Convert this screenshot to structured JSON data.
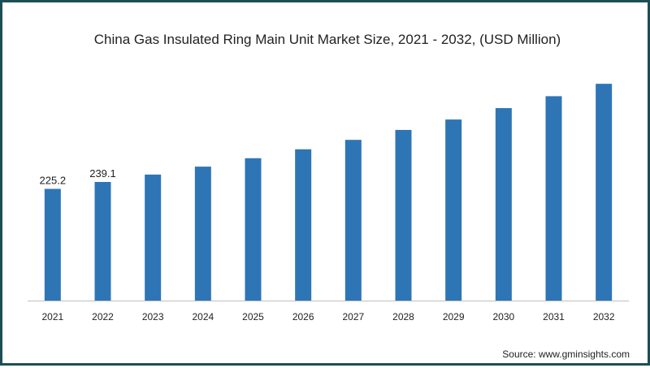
{
  "chart_data": {
    "type": "bar",
    "title": "China Gas Insulated Ring Main Unit Market Size, 2021 - 2032, (USD Million)",
    "xlabel": "",
    "ylabel": "",
    "categories": [
      "2021",
      "2022",
      "2023",
      "2024",
      "2025",
      "2026",
      "2027",
      "2028",
      "2029",
      "2030",
      "2031",
      "2032"
    ],
    "values": [
      225.2,
      239.1,
      254,
      270,
      287,
      305,
      324,
      344,
      365,
      388,
      412,
      437
    ],
    "data_labels": [
      "225.2",
      "239.1",
      "",
      "",
      "",
      "",
      "",
      "",
      "",
      "",
      "",
      ""
    ],
    "ylim": [
      0,
      470
    ],
    "bar_color": "#2e75b6",
    "grid": false,
    "legend": "none"
  },
  "source_text": "Source: www.gminsights.com",
  "colors": {
    "border": "#1d4e55",
    "bar": "#2e75b6",
    "axis": "#bfbfbf",
    "text": "#222222"
  }
}
